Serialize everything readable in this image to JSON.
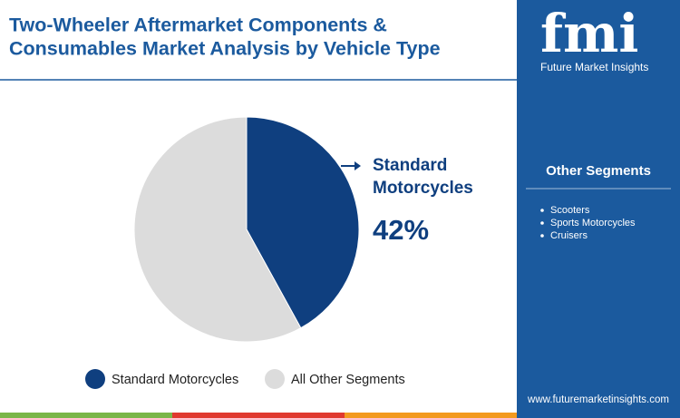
{
  "chart_data": {
    "type": "pie",
    "title": [
      "Two-Wheeler Aftermarket Components &",
      "Consumables Market Analysis by Vehicle Type"
    ],
    "categories": [
      "Standard Motorcycles",
      "All Other Segments"
    ],
    "values": [
      42,
      58
    ],
    "value_labels": [
      "42%",
      null
    ],
    "colors": [
      "#0f3f7f",
      "#dcdcdc"
    ]
  },
  "sidebar": {
    "logo": "fmi",
    "brand": "Future Market Insights",
    "heading": "Other Segments",
    "items": [
      "Scooters",
      "Sports Motorcycles",
      "Cruisers"
    ],
    "website": "www.futuremarketinsights.com"
  }
}
